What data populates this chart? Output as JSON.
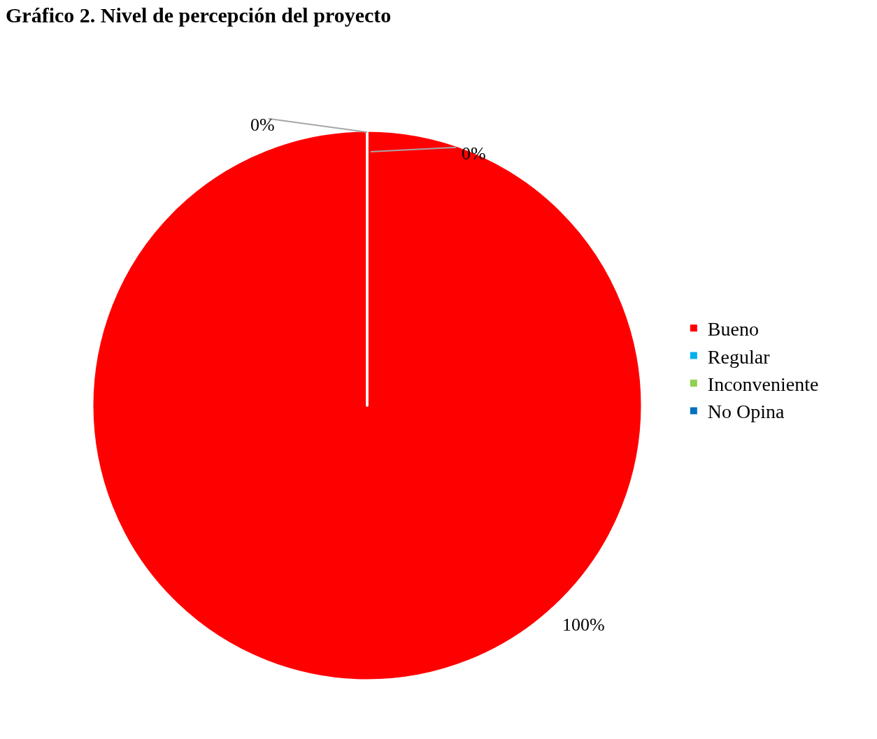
{
  "chart_data": {
    "type": "pie",
    "title": "Gráfico 2. Nivel de percepción del proyecto",
    "categories": [
      "Bueno",
      "Regular",
      "Inconveniente",
      "No Opina"
    ],
    "values": [
      100,
      0,
      0,
      0
    ],
    "colors": [
      "#ff0000",
      "#00b0f0",
      "#92d050",
      "#0070c0"
    ],
    "value_labels": [
      "100%",
      "0%",
      "0%",
      null
    ],
    "legend": "right"
  }
}
